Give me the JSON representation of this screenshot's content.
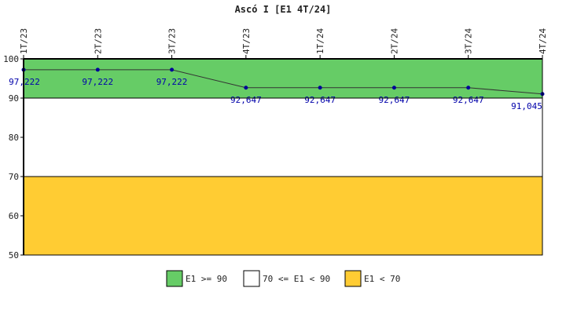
{
  "chart_data": {
    "type": "line",
    "title": "Ascó I [E1 4T/24]",
    "categories": [
      "1T/23",
      "2T/23",
      "3T/23",
      "4T/23",
      "1T/24",
      "2T/24",
      "3T/24",
      "4T/24"
    ],
    "series": [
      {
        "values": [
          97.222,
          97.222,
          97.222,
          92.647,
          92.647,
          92.647,
          92.647,
          91.045
        ],
        "data_labels": [
          "97,222",
          "97,222",
          "97,222",
          "92,647",
          "92,647",
          "92,647",
          "92,647",
          "91,045"
        ]
      }
    ],
    "ylim": [
      50,
      100
    ],
    "yticks": [
      "50",
      "60",
      "70",
      "80",
      "90",
      "100"
    ],
    "bands": [
      {
        "label": "E1 >= 90",
        "from": 90,
        "to": 100,
        "color": "#66cc66"
      },
      {
        "label": "70 <= E1 < 90",
        "from": 70,
        "to": 90,
        "color": "#ffffff"
      },
      {
        "label": "E1 < 70",
        "from": 50,
        "to": 70,
        "color": "#ffcc33"
      }
    ],
    "line_color": "#333333",
    "point_color": "#000099",
    "label_color": "#0000aa",
    "legend_position": "bottom"
  }
}
